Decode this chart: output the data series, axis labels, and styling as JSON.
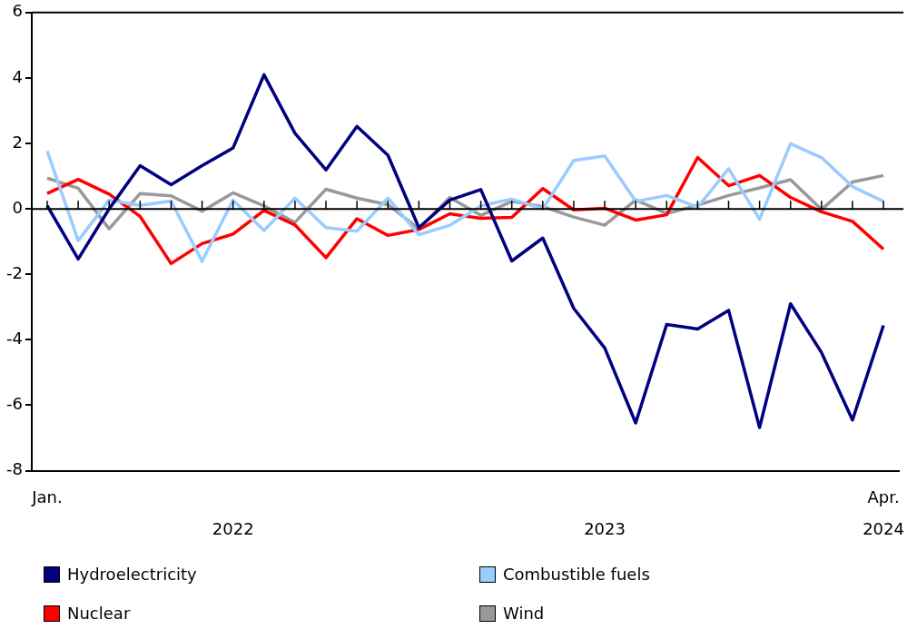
{
  "chart_data": {
    "type": "line",
    "categories": [
      "Jan.\n",
      null,
      null,
      null,
      null,
      null,
      "\n2022",
      null,
      null,
      null,
      null,
      null,
      null,
      null,
      null,
      null,
      null,
      null,
      "\n2023",
      null,
      null,
      null,
      null,
      null,
      null,
      null,
      null,
      "Apr.\n2024"
    ],
    "series": [
      {
        "name": "Hydroelectricity",
        "color": "#000080",
        "values": [
          0.1,
          -1.53,
          0.0,
          1.32,
          0.74,
          1.32,
          1.86,
          4.1,
          2.31,
          1.19,
          2.52,
          1.64,
          -0.57,
          0.27,
          0.59,
          -1.59,
          -0.89,
          -3.04,
          -4.25,
          -6.54,
          -3.53,
          -3.67,
          -3.1,
          -6.68,
          -2.9,
          -4.39,
          -6.45,
          -3.56
        ]
      },
      {
        "name": "Combustible fuels",
        "color": "#99ccff",
        "values": [
          1.77,
          -0.97,
          0.27,
          0.11,
          0.24,
          -1.6,
          0.27,
          -0.66,
          0.33,
          -0.57,
          -0.68,
          0.33,
          -0.79,
          -0.5,
          0.09,
          0.3,
          0.0,
          1.48,
          1.62,
          0.23,
          0.41,
          0.05,
          1.23,
          -0.32,
          1.99,
          1.57,
          0.68,
          0.23
        ]
      },
      {
        "name": "Nuclear",
        "color": "#ff0000",
        "values": [
          0.47,
          0.9,
          0.45,
          -0.23,
          -1.67,
          -1.06,
          -0.77,
          -0.05,
          -0.49,
          -1.49,
          -0.3,
          -0.81,
          -0.63,
          -0.15,
          -0.29,
          -0.26,
          0.62,
          -0.03,
          0.02,
          -0.34,
          -0.18,
          1.57,
          0.71,
          1.02,
          0.35,
          -0.09,
          -0.38,
          -1.23
        ]
      },
      {
        "name": "Wind",
        "color": "#999999",
        "values": [
          0.94,
          0.63,
          -0.61,
          0.47,
          0.4,
          -0.07,
          0.49,
          0.09,
          -0.41,
          0.6,
          0.33,
          0.13,
          -0.61,
          0.35,
          -0.2,
          0.23,
          0.07,
          -0.25,
          -0.5,
          0.27,
          -0.14,
          0.11,
          0.41,
          0.64,
          0.89,
          -0.02,
          0.82,
          1.02
        ]
      }
    ],
    "ylim": [
      -8,
      6
    ],
    "yticks": [
      -8,
      -6,
      -4,
      -2,
      0,
      2,
      4,
      6
    ],
    "ref_lines": [
      {
        "axis": "y",
        "value": 0
      }
    ],
    "grid": false,
    "legend": "bottom",
    "marker": "none",
    "line_style": "solid"
  }
}
